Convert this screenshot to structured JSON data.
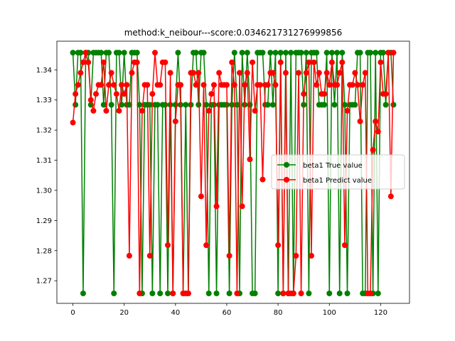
{
  "chart_data": {
    "type": "line",
    "title": "method:k_neibour---score:0.034621731276999856",
    "xlabel": "",
    "ylabel": "",
    "xlim": [
      -6.25,
      131.25
    ],
    "ylim": [
      1.2625,
      1.3495
    ],
    "xticks": [
      0,
      20,
      40,
      60,
      80,
      100,
      120
    ],
    "yticks": [
      1.27,
      1.28,
      1.29,
      1.3,
      1.31,
      1.32,
      1.33,
      1.34
    ],
    "ytick_labels": [
      "1.27",
      "1.28",
      "1.29",
      "1.30",
      "1.31",
      "1.32",
      "1.33",
      "1.34"
    ],
    "grid": false,
    "legend_position": "center-right",
    "x": [
      0,
      1,
      2,
      3,
      4,
      5,
      6,
      7,
      8,
      9,
      10,
      11,
      12,
      13,
      14,
      15,
      16,
      17,
      18,
      19,
      20,
      21,
      22,
      23,
      24,
      25,
      26,
      27,
      28,
      29,
      30,
      31,
      32,
      33,
      34,
      35,
      36,
      37,
      38,
      39,
      40,
      41,
      42,
      43,
      44,
      45,
      46,
      47,
      48,
      49,
      50,
      51,
      52,
      53,
      54,
      55,
      56,
      57,
      58,
      59,
      60,
      61,
      62,
      63,
      64,
      65,
      66,
      67,
      68,
      69,
      70,
      71,
      72,
      73,
      74,
      75,
      76,
      77,
      78,
      79,
      80,
      81,
      82,
      83,
      84,
      85,
      86,
      87,
      88,
      89,
      90,
      91,
      92,
      93,
      94,
      95,
      96,
      97,
      98,
      99,
      100,
      101,
      102,
      103,
      104,
      105,
      106,
      107,
      108,
      109,
      110,
      111,
      112,
      113,
      114,
      115,
      116,
      117,
      118,
      119,
      120,
      121,
      122,
      123,
      124,
      125
    ],
    "series": [
      {
        "name": "beta1 True value",
        "color": "#008000",
        "values": [
          1.3457,
          1.3284,
          1.3457,
          1.3457,
          1.2658,
          1.3457,
          1.3457,
          1.3284,
          1.3457,
          1.3457,
          1.3457,
          1.3457,
          1.3284,
          1.3457,
          1.3457,
          1.3284,
          1.2658,
          1.3457,
          1.3457,
          1.3284,
          1.3457,
          1.3284,
          1.3284,
          1.3457,
          1.3457,
          1.3457,
          1.3284,
          1.2658,
          1.3284,
          1.3284,
          1.3284,
          1.2658,
          1.3284,
          1.3284,
          1.2658,
          1.3284,
          1.3284,
          1.2658,
          1.3284,
          1.2658,
          1.3284,
          1.3457,
          1.3284,
          1.2658,
          1.3284,
          1.2658,
          1.3284,
          1.3457,
          1.3457,
          1.3284,
          1.3457,
          1.3457,
          1.3284,
          1.2658,
          1.3284,
          1.3284,
          1.2658,
          1.3284,
          1.3284,
          1.3284,
          1.3284,
          1.2658,
          1.3284,
          1.3457,
          1.3284,
          1.2658,
          1.3457,
          1.3284,
          1.3457,
          1.3284,
          1.2658,
          1.2658,
          1.3457,
          1.3457,
          1.3457,
          1.3284,
          1.3284,
          1.3457,
          1.3284,
          1.3457,
          1.2658,
          1.3457,
          1.2658,
          1.3457,
          1.2658,
          1.3457,
          1.2658,
          1.3457,
          1.3457,
          1.3457,
          1.3284,
          1.3457,
          1.2658,
          1.3457,
          1.3457,
          1.3457,
          1.3284,
          1.3284,
          1.3284,
          1.3457,
          1.2658,
          1.3457,
          1.3284,
          1.3457,
          1.2658,
          1.3457,
          1.3284,
          1.2658,
          1.3284,
          1.3284,
          1.3284,
          1.3457,
          1.3457,
          1.2658,
          1.2658,
          1.3457,
          1.3457,
          1.2658,
          1.3457,
          1.2658,
          1.3457,
          1.3457,
          1.3284,
          1.3457,
          1.3457,
          1.3284
        ]
      },
      {
        "name": "beta1 Predict value",
        "color": "#ff0000",
        "values": [
          1.3225,
          1.332,
          1.335,
          1.339,
          1.3425,
          1.3457,
          1.3425,
          1.33,
          1.3264,
          1.332,
          1.335,
          1.335,
          1.3425,
          1.3264,
          1.335,
          1.339,
          1.335,
          1.332,
          1.3264,
          1.335,
          1.332,
          1.335,
          1.2783,
          1.339,
          1.3425,
          1.3425,
          1.2658,
          1.3264,
          1.335,
          1.335,
          1.2783,
          1.332,
          1.3457,
          1.335,
          1.335,
          1.3425,
          1.3425,
          1.2818,
          1.339,
          1.2658,
          1.3229,
          1.335,
          1.335,
          1.2658,
          1.2658,
          1.2658,
          1.339,
          1.339,
          1.335,
          1.339,
          1.298,
          1.335,
          1.2818,
          1.3264,
          1.332,
          1.335,
          1.2947,
          1.339,
          1.335,
          1.335,
          1.335,
          1.2783,
          1.3425,
          1.335,
          1.2658,
          1.339,
          1.2947,
          1.335,
          1.339,
          1.3103,
          1.3425,
          1.3264,
          1.335,
          1.335,
          1.3036,
          1.335,
          1.335,
          1.339,
          1.339,
          1.335,
          1.2818,
          1.3425,
          1.2658,
          1.339,
          1.2658,
          1.2658,
          1.2658,
          1.2783,
          1.339,
          1.2658,
          1.332,
          1.339,
          1.3425,
          1.2783,
          1.3425,
          1.335,
          1.339,
          1.332,
          1.332,
          1.339,
          1.335,
          1.3425,
          1.335,
          1.335,
          1.339,
          1.3425,
          1.2818,
          1.3264,
          1.335,
          1.335,
          1.339,
          1.335,
          1.3229,
          1.335,
          1.339,
          1.2658,
          1.2658,
          1.3134,
          1.3229,
          1.3195,
          1.3425,
          1.332,
          1.332,
          1.3457,
          1.298,
          1.3457
        ]
      }
    ]
  }
}
